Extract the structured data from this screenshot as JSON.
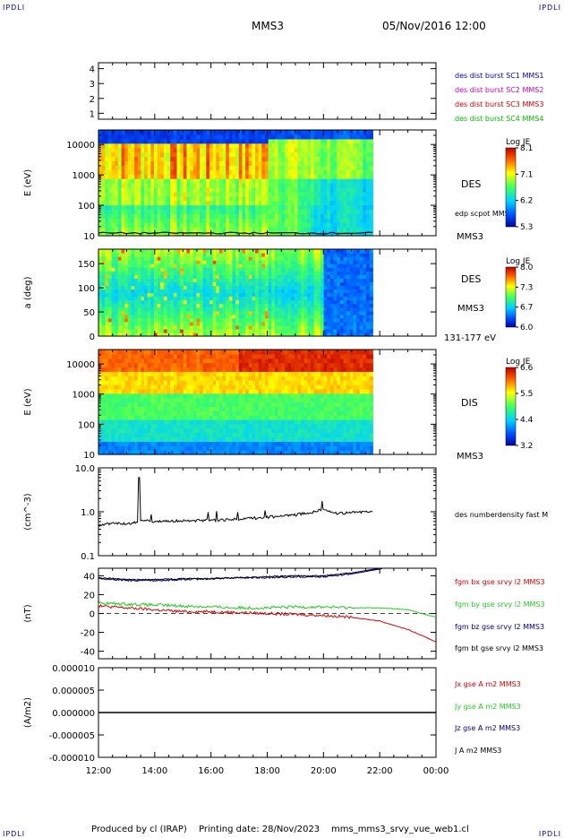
{
  "header": {
    "corner_tl": "IPDLI",
    "corner_tr": "IPDLI",
    "corner_bl": "IPDLI",
    "corner_br": "IPDLI",
    "spacecraft": "MMS3",
    "datetime": "05/Nov/2016 12:00"
  },
  "footer": {
    "produced_by": "Produced by cl (IRAP)",
    "printing_date": "Printing date: 28/Nov/2023",
    "filename": "mms_mms3_srvy_vue_web1.cl"
  },
  "colors": {
    "mms1": "#0000cc",
    "mms2": "#cc00cc",
    "mms3": "#dd0000",
    "mms4": "#00bb00",
    "bx": "#dd0000",
    "by": "#22cc22",
    "bz": "#000080",
    "bt": "#000000"
  },
  "chart_data": [
    {
      "type": "line",
      "panel": "burst-flags",
      "yticks": [
        1,
        2,
        3,
        4
      ],
      "ylim": [
        0.6,
        4.4
      ],
      "legend": [
        "des dist burst SC1 MMS1",
        "des dist burst SC2 MMS2",
        "des dist burst SC3 MMS3",
        "des dist burst SC4 MMS4"
      ]
    },
    {
      "type": "heatmap",
      "panel": "des-energy",
      "ylabel": "E (eV)",
      "yscale": "log",
      "yticks": [
        "10",
        "100",
        "1000",
        "10000"
      ],
      "ylim": [
        10,
        30000
      ],
      "instrument": "DES",
      "overlay_label": "edp scpot MMS3",
      "sc_label": "MMS3",
      "colorbar_title": "Log JE",
      "colorbar_ticks": [
        "8.1",
        "7.1",
        "6.2",
        "5.3"
      ],
      "data_end": "21:45"
    },
    {
      "type": "heatmap",
      "panel": "des-pitch",
      "ylabel": "a (deg)",
      "yticks": [
        "0",
        "50",
        "100",
        "150"
      ],
      "ylim": [
        0,
        180
      ],
      "instrument": "DES",
      "sc_label": "MMS3",
      "energy_range": "131-177 eV",
      "colorbar_title": "Log JE",
      "colorbar_ticks": [
        "8.0",
        "7.3",
        "6.7",
        "6.0"
      ],
      "data_end": "21:45"
    },
    {
      "type": "heatmap",
      "panel": "dis-energy",
      "ylabel": "E (eV)",
      "yscale": "log",
      "yticks": [
        "10",
        "100",
        "1000",
        "10000"
      ],
      "ylim": [
        10,
        30000
      ],
      "instrument": "DIS",
      "sc_label": "MMS3",
      "colorbar_title": "Log JE",
      "colorbar_ticks": [
        "6.6",
        "5.5",
        "4.4",
        "3.2"
      ],
      "data_end": "21:45"
    },
    {
      "type": "line",
      "panel": "density",
      "ylabel": "(cm^-3)",
      "yscale": "log",
      "yticks": [
        "0.1",
        "1.0",
        "10.0"
      ],
      "ylim": [
        0.1,
        10
      ],
      "series": [
        {
          "name": "des numberdensity fast M",
          "color": "#000000",
          "x": [
            "12:00",
            "12:30",
            "13:00",
            "13:30",
            "13:45",
            "14:00",
            "15:00",
            "16:00",
            "17:00",
            "18:00",
            "19:00",
            "19:30",
            "20:00",
            "20:30",
            "21:00",
            "21:45"
          ],
          "values": [
            0.48,
            0.55,
            0.52,
            0.6,
            0.62,
            0.6,
            0.62,
            0.64,
            0.68,
            0.75,
            0.85,
            0.95,
            1.15,
            0.9,
            0.95,
            1.05
          ]
        }
      ]
    },
    {
      "type": "line",
      "panel": "magnetic-field",
      "ylabel": "(nT)",
      "yticks": [
        "-40",
        "-20",
        "0",
        "20",
        "40"
      ],
      "ylim": [
        -48,
        48
      ],
      "series": [
        {
          "name": "fgm bx gse srvy l2 MMS3",
          "color": "#dd0000",
          "x": [
            "12:00",
            "13:00",
            "14:00",
            "15:00",
            "16:00",
            "17:00",
            "18:00",
            "19:00",
            "20:00",
            "21:00",
            "22:00",
            "23:00",
            "00:00"
          ],
          "values": [
            8,
            6,
            4,
            2,
            2,
            1,
            0,
            -1,
            -2,
            -4,
            -8,
            -17,
            -30
          ]
        },
        {
          "name": "fgm by gse srvy l2 MMS3",
          "color": "#22cc22",
          "x": [
            "12:00",
            "13:00",
            "14:00",
            "15:00",
            "16:00",
            "17:00",
            "18:00",
            "19:00",
            "20:00",
            "21:00",
            "22:00",
            "23:00",
            "00:00"
          ],
          "values": [
            11,
            10,
            9,
            8,
            7,
            6,
            6,
            7,
            7,
            6,
            6,
            4,
            -4
          ]
        },
        {
          "name": "fgm bz gse srvy l2 MMS3",
          "color": "#000080",
          "x": [
            "12:00",
            "13:00",
            "14:00",
            "15:00",
            "16:00",
            "17:00",
            "18:00",
            "19:00",
            "20:00",
            "21:00",
            "22:00",
            "22:15"
          ],
          "values": [
            37,
            35,
            35,
            36,
            37,
            38,
            38,
            39,
            39,
            42,
            47,
            50
          ]
        },
        {
          "name": "fgm bt gse srvy l2 MMS3",
          "color": "#000000",
          "x": [
            "12:00",
            "13:00",
            "14:00",
            "15:00",
            "16:00",
            "17:00",
            "18:00",
            "19:00",
            "20:00",
            "21:00",
            "22:00",
            "22:15"
          ],
          "values": [
            38,
            36,
            36,
            37,
            37,
            38,
            39,
            40,
            40,
            43,
            48,
            51
          ]
        }
      ]
    },
    {
      "type": "line",
      "panel": "current-density",
      "ylabel": "(A/m2)",
      "yticks": [
        "-0.000010",
        "-0.000005",
        "0.000000",
        "0.000005",
        "0.000010"
      ],
      "ylim": [
        -1e-05,
        1e-05
      ],
      "series": [
        {
          "name": "Jx gse A m2 MMS3",
          "color": "#dd0000"
        },
        {
          "name": "Jy gse A m2 MMS3",
          "color": "#22cc22"
        },
        {
          "name": "Jz gse A m2 MMS3",
          "color": "#000080"
        },
        {
          "name": "J A m2 MMS3",
          "color": "#000000"
        }
      ],
      "values": [
        0,
        0
      ]
    }
  ],
  "xaxis": {
    "ticks": [
      "12:00",
      "14:00",
      "16:00",
      "18:00",
      "20:00",
      "22:00",
      "00:00"
    ]
  }
}
